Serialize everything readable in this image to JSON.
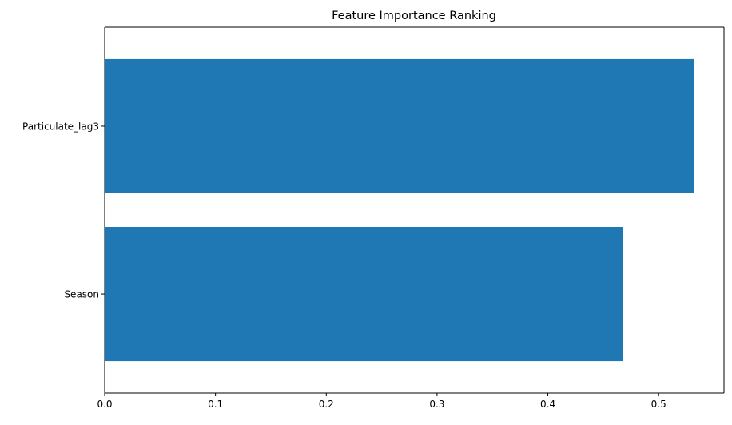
{
  "chart_data": {
    "type": "bar",
    "orientation": "horizontal",
    "title": "Feature Importance Ranking",
    "xlabel": "",
    "ylabel": "",
    "categories": [
      "Particulate_lag3",
      "Season"
    ],
    "values": [
      0.532,
      0.468
    ],
    "xlim": [
      0,
      0.559
    ],
    "xticks": [
      "0.0",
      "0.1",
      "0.2",
      "0.3",
      "0.4",
      "0.5"
    ],
    "grid": false,
    "bar_color": "#1f77b4"
  }
}
